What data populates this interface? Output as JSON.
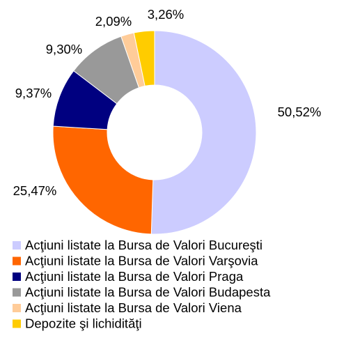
{
  "chart_data": {
    "type": "donut",
    "categories": [
      "Acţiuni listate la Bursa de Valori Bucureşti",
      "Acţiuni listate la Bursa de Valori Varşovia",
      "Acţiuni listate la Bursa de Valori Praga",
      "Acţiuni listate la Bursa de Valori Budapesta",
      "Acţiuni listate la Bursa de Valori Viena",
      "Depozite şi lichidităţi"
    ],
    "values": [
      50.52,
      25.47,
      9.37,
      9.3,
      2.09,
      3.26
    ],
    "value_labels": [
      "50,52%",
      "25,47%",
      "9,37%",
      "9,30%",
      "2,09%",
      "3,26%"
    ],
    "colors": [
      "#ccccff",
      "#ff6600",
      "#000080",
      "#999999",
      "#ffcc99",
      "#ffcc00"
    ]
  }
}
